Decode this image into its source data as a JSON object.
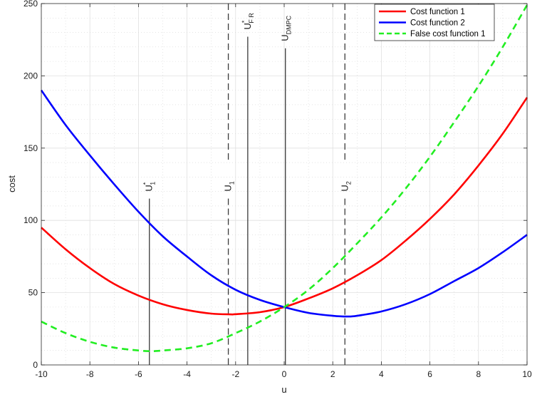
{
  "chart_data": {
    "type": "line",
    "title": "",
    "xlabel": "u",
    "ylabel": "cost",
    "xlim": [
      -10,
      10
    ],
    "ylim": [
      0,
      250
    ],
    "xticks": [
      -10,
      -8,
      -6,
      -4,
      -2,
      0,
      2,
      4,
      6,
      8,
      10
    ],
    "yticks": [
      0,
      50,
      100,
      150,
      200,
      250
    ],
    "grid": true,
    "legend_position": "top-right",
    "series": [
      {
        "name": "Cost function 1",
        "color": "#ff0000",
        "style": "solid",
        "x": [
          -10,
          -9,
          -8,
          -7,
          -6,
          -5,
          -4,
          -3,
          -2.2,
          -2,
          -1,
          0,
          1,
          2,
          3,
          4,
          5,
          6,
          7,
          8,
          9,
          10
        ],
        "y": [
          95,
          80,
          67,
          56,
          48,
          42,
          38,
          35.5,
          35,
          35.1,
          36.5,
          40,
          46,
          53,
          62,
          72.5,
          86,
          101,
          118,
          138,
          160,
          185
        ]
      },
      {
        "name": "Cost function 2",
        "color": "#0000ff",
        "style": "solid",
        "x": [
          -10,
          -9,
          -8,
          -7,
          -6,
          -5,
          -4,
          -3,
          -2,
          -1,
          0,
          1,
          2,
          2.6,
          3,
          4,
          5,
          6,
          7,
          8,
          9,
          10
        ],
        "y": [
          190,
          166,
          145,
          125,
          106,
          89,
          75,
          62,
          52,
          45,
          40,
          36,
          34,
          33.5,
          34,
          37,
          42,
          49,
          58,
          67,
          78,
          90
        ]
      },
      {
        "name": "False cost function 1",
        "color": "#22ee22",
        "style": "dashed",
        "x": [
          -10,
          -9,
          -8,
          -7,
          -6,
          -5.5,
          -5,
          -4,
          -3,
          -2,
          -1,
          0,
          1,
          2,
          3,
          4,
          5,
          6,
          7,
          8,
          9,
          10
        ],
        "y": [
          30,
          22,
          16,
          12,
          10,
          9.5,
          10,
          11.5,
          15,
          22,
          30,
          40,
          52,
          67,
          84,
          102,
          122,
          144,
          168,
          193,
          220,
          249
        ]
      }
    ],
    "vertical_lines": [
      {
        "x": -5.55,
        "style": "solid",
        "label": "U",
        "sup": "*",
        "sub": "1",
        "label_y": 120
      },
      {
        "x": -2.3,
        "style": "dashed",
        "label": "U",
        "sup": "",
        "sub": "1",
        "label_y": 120
      },
      {
        "x": -1.5,
        "style": "solid",
        "label": "U",
        "sup": "*",
        "sub": "F R",
        "label_y": 232
      },
      {
        "x": 0.05,
        "style": "solid",
        "label": "U",
        "sup": "",
        "sub": "DMPC",
        "label_y": 224
      },
      {
        "x": 2.5,
        "style": "dashed",
        "label": "U",
        "sup": "",
        "sub": "2",
        "label_y": 120
      }
    ]
  }
}
